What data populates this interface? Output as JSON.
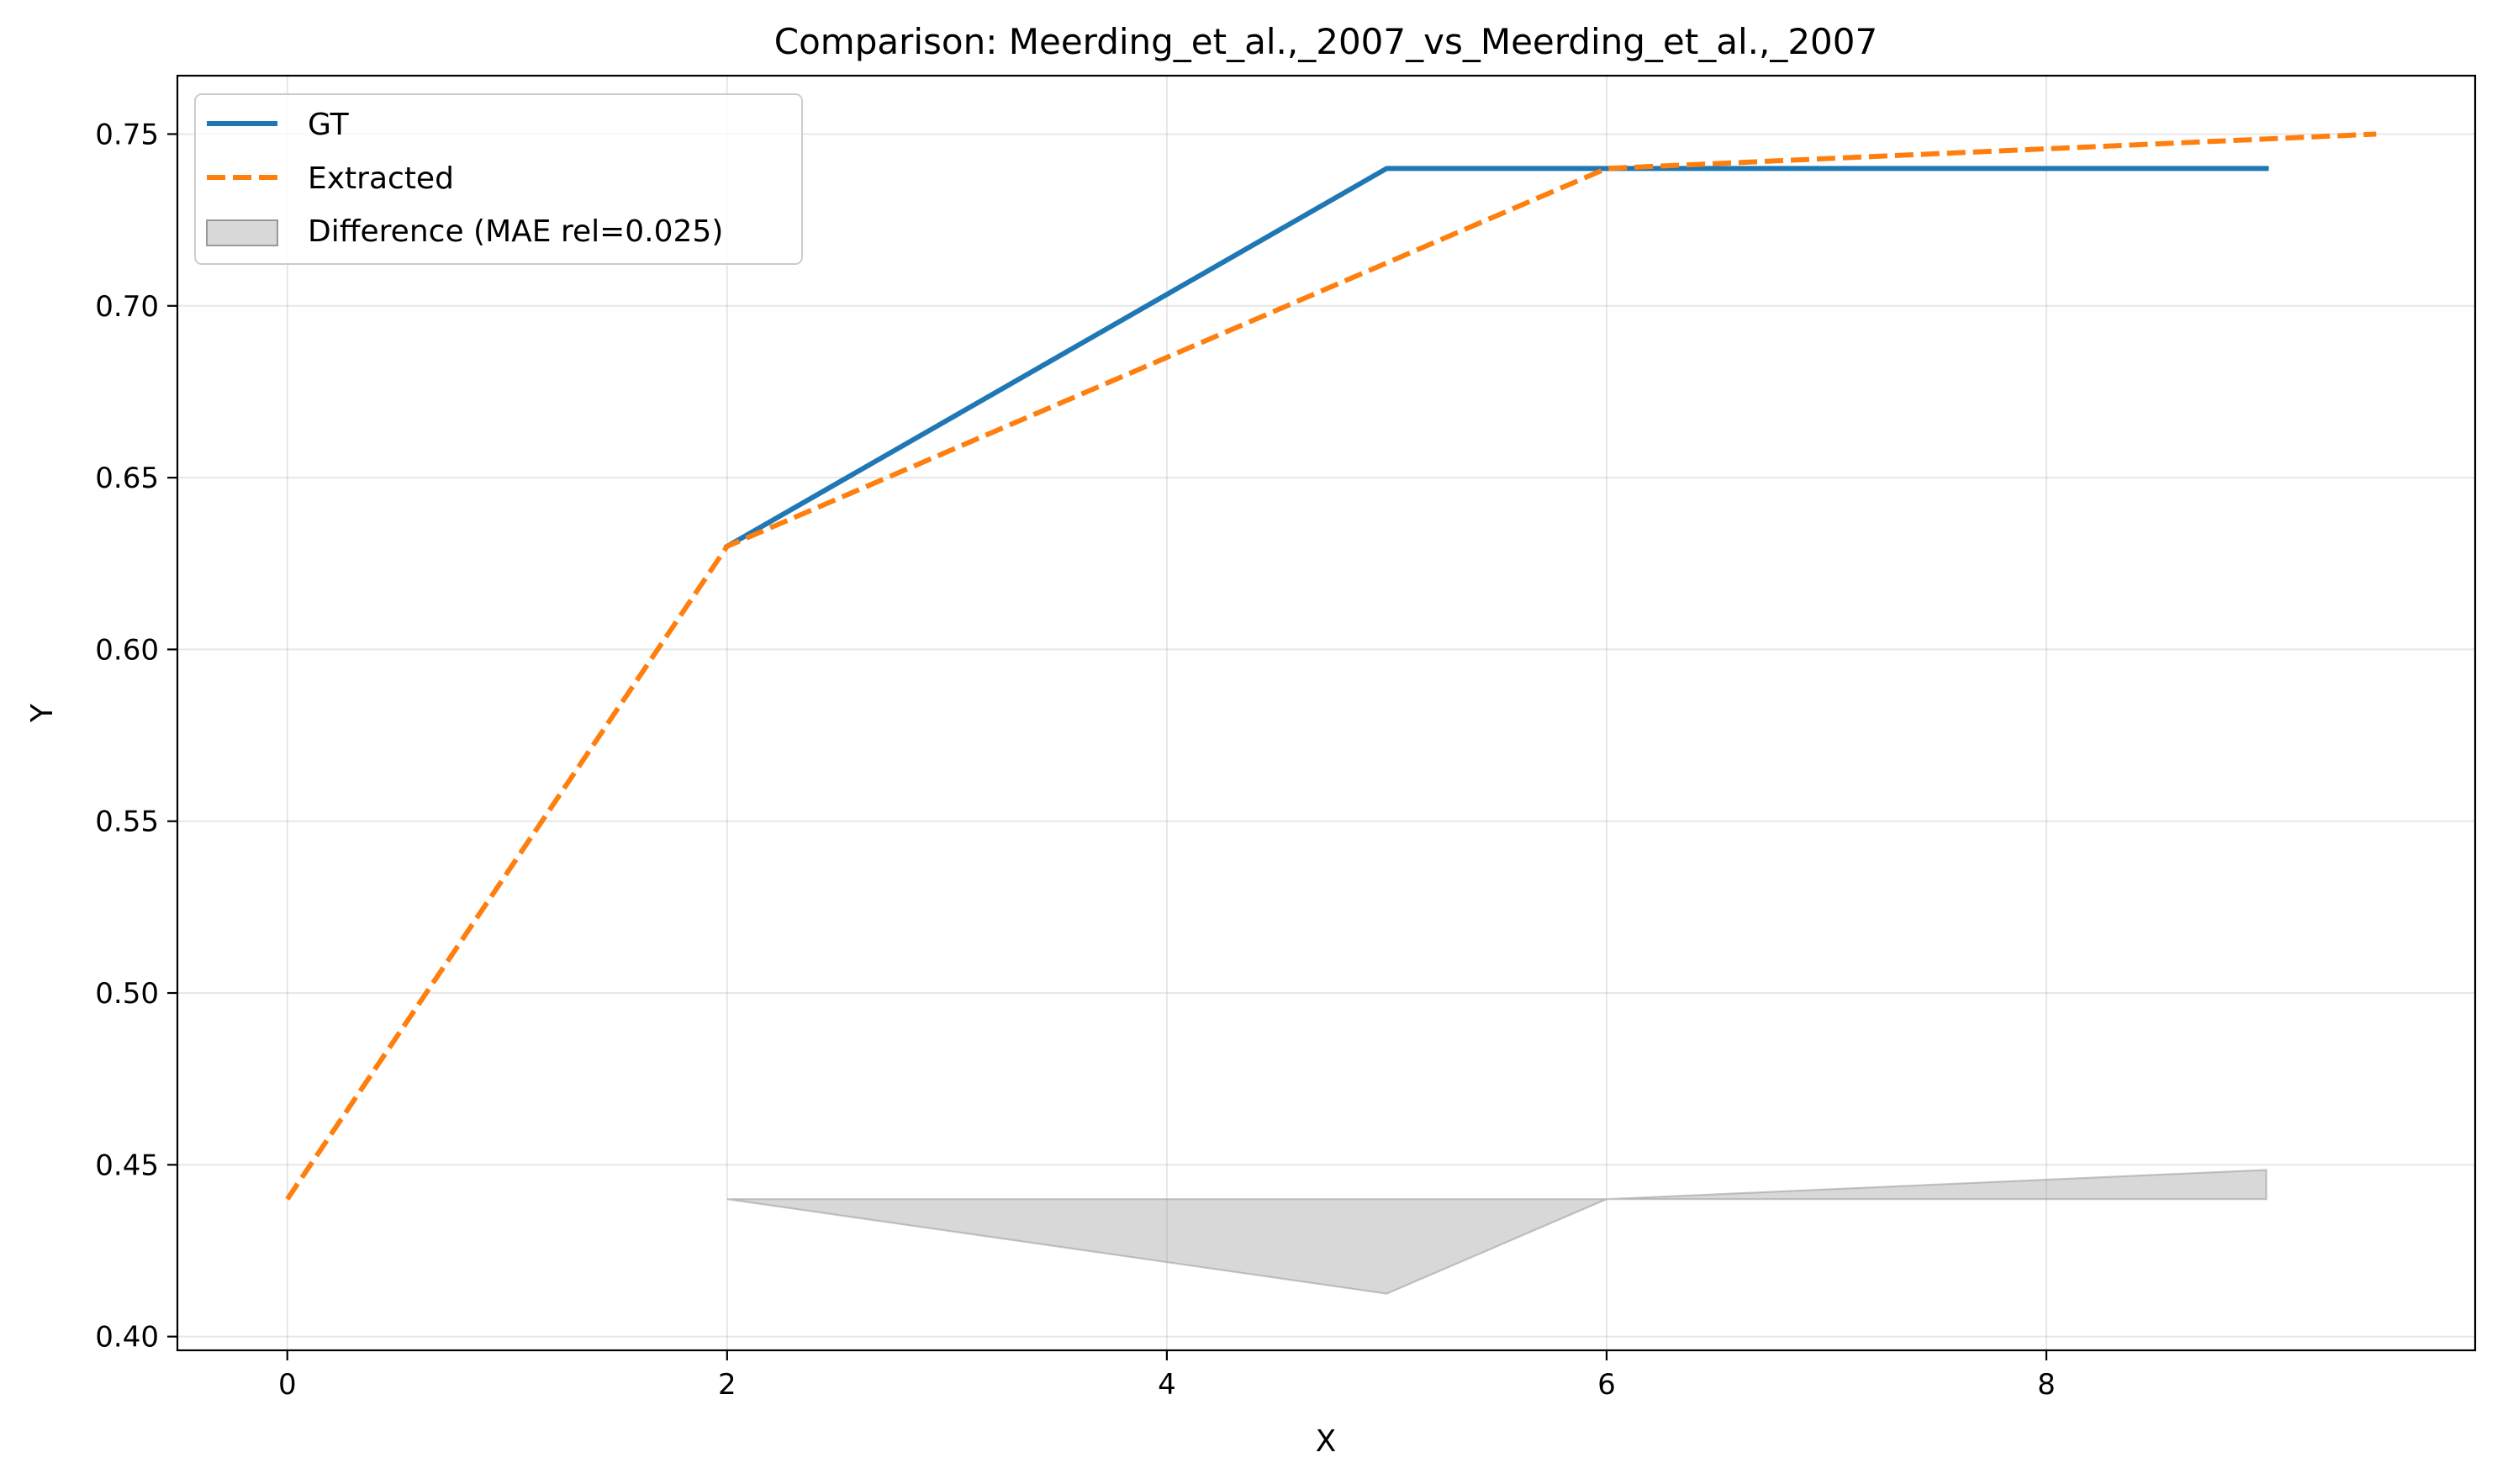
{
  "chart_data": {
    "type": "line",
    "title": "Comparison: Meerding_et_al.,_2007_vs_Meerding_et_al.,_2007",
    "xlabel": "X",
    "ylabel": "Y",
    "xlim": [
      -0.5,
      9.95
    ],
    "ylim": [
      0.396,
      0.767
    ],
    "xticks": [
      0,
      2,
      4,
      6,
      8
    ],
    "xtick_labels": [
      "0",
      "2",
      "4",
      "6",
      "8"
    ],
    "yticks": [
      0.4,
      0.45,
      0.5,
      0.55,
      0.6,
      0.65,
      0.7,
      0.75
    ],
    "ytick_labels": [
      "0.40",
      "0.45",
      "0.50",
      "0.55",
      "0.60",
      "0.65",
      "0.70",
      "0.75"
    ],
    "grid": true,
    "legend_position": "top-left",
    "series": [
      {
        "name": "GT",
        "style": "solid",
        "color": "#1f77b4",
        "x": [
          2,
          5,
          6,
          9
        ],
        "y": [
          0.63,
          0.74,
          0.74,
          0.74
        ]
      },
      {
        "name": "Extracted",
        "style": "dashed",
        "color": "#ff7f0e",
        "x": [
          0,
          2,
          6,
          9.5
        ],
        "y": [
          0.44,
          0.63,
          0.74,
          0.75
        ]
      }
    ],
    "difference_band": {
      "name": "Difference (MAE rel=0.025)",
      "color": "#999999",
      "x": [
        2,
        5,
        6,
        9
      ],
      "baseline": 0.44,
      "y": [
        0.44,
        0.4125,
        0.44,
        0.4485
      ]
    }
  }
}
